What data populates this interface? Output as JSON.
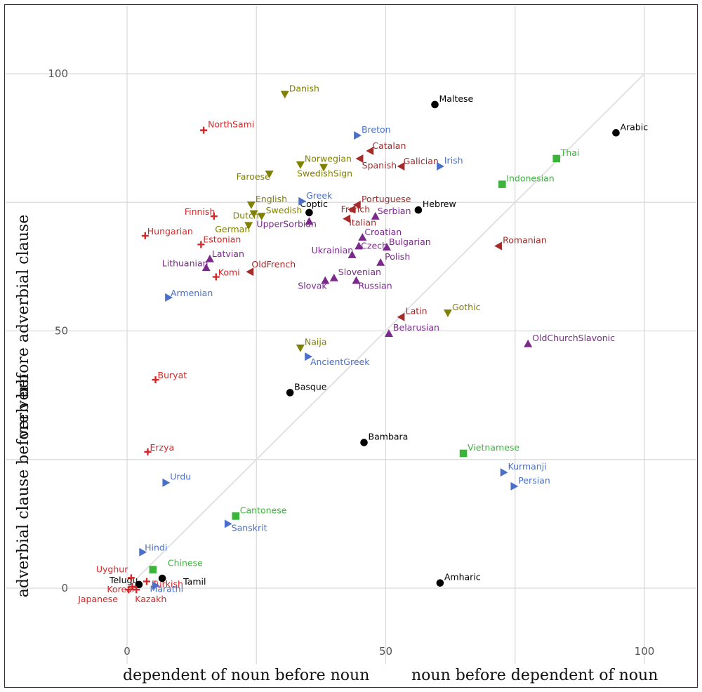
{
  "chart_data": {
    "type": "scatter",
    "title": "",
    "xlabel_left": "dependent of noun before noun",
    "xlabel_right": "noun before dependent of noun",
    "ylabel_top": "verb before adverbial clause",
    "ylabel_bottom": "adverbial clause before verb",
    "xlim": [
      -12,
      110
    ],
    "ylim": [
      -12,
      110
    ],
    "x_ticks": [
      0,
      50,
      100
    ],
    "y_ticks": [
      0,
      50,
      100
    ],
    "grid": true,
    "legend": "none",
    "reference_line": "diagonal y = x",
    "colors": {
      "red": "#d62728",
      "olive": "#808000",
      "blue": "#4a6fc9",
      "darkred": "#a52a2a",
      "purple": "#7b2a8c",
      "green": "#3cb43c",
      "black": "#000000"
    },
    "points": [
      {
        "name": "Danish",
        "x": 30.5,
        "y": 96,
        "marker": "down",
        "color": "olive"
      },
      {
        "name": "Maltese",
        "x": 59.5,
        "y": 94,
        "marker": "circle",
        "color": "black"
      },
      {
        "name": "NorthSami",
        "x": 14.8,
        "y": 89,
        "marker": "plus",
        "color": "red"
      },
      {
        "name": "Breton",
        "x": 44.5,
        "y": 88,
        "marker": "right",
        "color": "blue"
      },
      {
        "name": "Arabic",
        "x": 94.5,
        "y": 88.5,
        "marker": "circle",
        "color": "black"
      },
      {
        "name": "Catalan",
        "x": 47,
        "y": 85,
        "marker": "left",
        "color": "darkred"
      },
      {
        "name": "Thai",
        "x": 83,
        "y": 83.5,
        "marker": "square",
        "color": "green"
      },
      {
        "name": "Spanish",
        "x": 45,
        "y": 83.5,
        "marker": "left",
        "color": "darkred"
      },
      {
        "name": "Galician",
        "x": 53,
        "y": 82,
        "marker": "left",
        "color": "darkred"
      },
      {
        "name": "Irish",
        "x": 60.5,
        "y": 82,
        "marker": "right",
        "color": "blue"
      },
      {
        "name": "Norwegian",
        "x": 33.5,
        "y": 82.3,
        "marker": "down",
        "color": "olive"
      },
      {
        "name": "SwedishSign",
        "x": 38,
        "y": 81.8,
        "marker": "down",
        "color": "olive"
      },
      {
        "name": "Faroese",
        "x": 27.5,
        "y": 80.5,
        "marker": "down",
        "color": "olive"
      },
      {
        "name": "Indonesian",
        "x": 72.5,
        "y": 78.5,
        "marker": "square",
        "color": "green"
      },
      {
        "name": "Greek",
        "x": 33.8,
        "y": 75.2,
        "marker": "right",
        "color": "blue"
      },
      {
        "name": "English",
        "x": 24,
        "y": 74.5,
        "marker": "down",
        "color": "olive"
      },
      {
        "name": "Portuguese",
        "x": 44.5,
        "y": 74.5,
        "marker": "left",
        "color": "darkred"
      },
      {
        "name": "Coptic",
        "x": 35.2,
        "y": 73,
        "marker": "circle",
        "color": "black"
      },
      {
        "name": "Hebrew",
        "x": 56.3,
        "y": 73.5,
        "marker": "circle",
        "color": "black"
      },
      {
        "name": "French",
        "x": 43.5,
        "y": 73.6,
        "marker": "left",
        "color": "darkred"
      },
      {
        "name": "Serbian",
        "x": 48,
        "y": 72.3,
        "marker": "up",
        "color": "purple"
      },
      {
        "name": "Finnish",
        "x": 16.8,
        "y": 72.3,
        "marker": "plus",
        "color": "red"
      },
      {
        "name": "Swedish",
        "x": 26,
        "y": 72.3,
        "marker": "down",
        "color": "olive"
      },
      {
        "name": "Dutch",
        "x": 24.5,
        "y": 72.8,
        "marker": "down",
        "color": "olive"
      },
      {
        "name": "Italian",
        "x": 42.5,
        "y": 71.8,
        "marker": "left",
        "color": "darkred"
      },
      {
        "name": "UpperSorbian",
        "x": 35.2,
        "y": 71.3,
        "marker": "up",
        "color": "purple"
      },
      {
        "name": "German",
        "x": 23.5,
        "y": 70.5,
        "marker": "down",
        "color": "olive"
      },
      {
        "name": "Hungarian",
        "x": 3.5,
        "y": 68.5,
        "marker": "plus",
        "color": "red"
      },
      {
        "name": "Croatian",
        "x": 45.5,
        "y": 68.2,
        "marker": "up",
        "color": "purple"
      },
      {
        "name": "Estonian",
        "x": 14.3,
        "y": 66.8,
        "marker": "plus",
        "color": "red"
      },
      {
        "name": "Czech",
        "x": 44.8,
        "y": 66.5,
        "marker": "up",
        "color": "purple"
      },
      {
        "name": "Bulgarian",
        "x": 50.2,
        "y": 66.3,
        "marker": "up",
        "color": "purple"
      },
      {
        "name": "Romanian",
        "x": 71.8,
        "y": 66.5,
        "marker": "left",
        "color": "darkred"
      },
      {
        "name": "Ukrainian",
        "x": 43.5,
        "y": 64.8,
        "marker": "up",
        "color": "purple"
      },
      {
        "name": "Latvian",
        "x": 16,
        "y": 64,
        "marker": "up",
        "color": "purple"
      },
      {
        "name": "Polish",
        "x": 49,
        "y": 63.3,
        "marker": "up",
        "color": "purple"
      },
      {
        "name": "Lithuanian",
        "x": 15.3,
        "y": 62.3,
        "marker": "up",
        "color": "purple"
      },
      {
        "name": "OldFrench",
        "x": 23.8,
        "y": 61.5,
        "marker": "left",
        "color": "darkred"
      },
      {
        "name": "Komi",
        "x": 17.2,
        "y": 60.5,
        "marker": "plus",
        "color": "red"
      },
      {
        "name": "Slovenian",
        "x": 40,
        "y": 60.3,
        "marker": "up",
        "color": "purple"
      },
      {
        "name": "Slovak",
        "x": 38.3,
        "y": 59.8,
        "marker": "up",
        "color": "purple"
      },
      {
        "name": "Russian",
        "x": 44.3,
        "y": 59.8,
        "marker": "up",
        "color": "purple"
      },
      {
        "name": "Armenian",
        "x": 8,
        "y": 56.5,
        "marker": "right",
        "color": "blue"
      },
      {
        "name": "Latin",
        "x": 53,
        "y": 52.7,
        "marker": "left",
        "color": "darkred"
      },
      {
        "name": "Gothic",
        "x": 62,
        "y": 53.5,
        "marker": "down",
        "color": "olive"
      },
      {
        "name": "Belarusian",
        "x": 50.6,
        "y": 49.5,
        "marker": "up",
        "color": "purple"
      },
      {
        "name": "OldChurchSlavonic",
        "x": 77.5,
        "y": 47.5,
        "marker": "up",
        "color": "purple"
      },
      {
        "name": "Naija",
        "x": 33.5,
        "y": 46.7,
        "marker": "down",
        "color": "olive"
      },
      {
        "name": "AncientGreek",
        "x": 35,
        "y": 45,
        "marker": "right",
        "color": "blue"
      },
      {
        "name": "Buryat",
        "x": 5.5,
        "y": 40.5,
        "marker": "plus",
        "color": "red"
      },
      {
        "name": "Basque",
        "x": 31.5,
        "y": 38,
        "marker": "circle",
        "color": "black"
      },
      {
        "name": "Bambara",
        "x": 45.8,
        "y": 28.3,
        "marker": "circle",
        "color": "black"
      },
      {
        "name": "Vietnamese",
        "x": 65,
        "y": 26.2,
        "marker": "square",
        "color": "green"
      },
      {
        "name": "Erzya",
        "x": 4,
        "y": 26.5,
        "marker": "plus",
        "color": "red"
      },
      {
        "name": "Kurmanji",
        "x": 72.8,
        "y": 22.5,
        "marker": "right",
        "color": "blue"
      },
      {
        "name": "Urdu",
        "x": 7.5,
        "y": 20.5,
        "marker": "right",
        "color": "blue"
      },
      {
        "name": "Persian",
        "x": 74.8,
        "y": 19.8,
        "marker": "right",
        "color": "blue"
      },
      {
        "name": "Cantonese",
        "x": 21,
        "y": 14,
        "marker": "square",
        "color": "green"
      },
      {
        "name": "Sanskrit",
        "x": 19.5,
        "y": 12.5,
        "marker": "right",
        "color": "blue"
      },
      {
        "name": "Hindi",
        "x": 3,
        "y": 7,
        "marker": "right",
        "color": "blue"
      },
      {
        "name": "Chinese",
        "x": 5,
        "y": 3.6,
        "marker": "square",
        "color": "green"
      },
      {
        "name": "Uyghur",
        "x": 0.8,
        "y": 2,
        "marker": "plus",
        "color": "red"
      },
      {
        "name": "Turkish",
        "x": 3.8,
        "y": 1.3,
        "marker": "plus",
        "color": "red"
      },
      {
        "name": "Tamil",
        "x": 6.8,
        "y": 1.9,
        "marker": "circle",
        "color": "black"
      },
      {
        "name": "Telugu",
        "x": 2.3,
        "y": 0.7,
        "marker": "circle",
        "color": "black"
      },
      {
        "name": "Marathi",
        "x": 5.5,
        "y": 0.5,
        "marker": "right",
        "color": "blue"
      },
      {
        "name": "Amharic",
        "x": 60.5,
        "y": 1,
        "marker": "circle",
        "color": "black"
      },
      {
        "name": "Korean",
        "x": 1,
        "y": 0.3,
        "marker": "plus",
        "color": "red"
      },
      {
        "name": "Japanese",
        "x": 0.3,
        "y": -0.3,
        "marker": "plus",
        "color": "red"
      },
      {
        "name": "Kazakh",
        "x": 1.8,
        "y": -0.3,
        "marker": "plus",
        "color": "red"
      }
    ]
  }
}
